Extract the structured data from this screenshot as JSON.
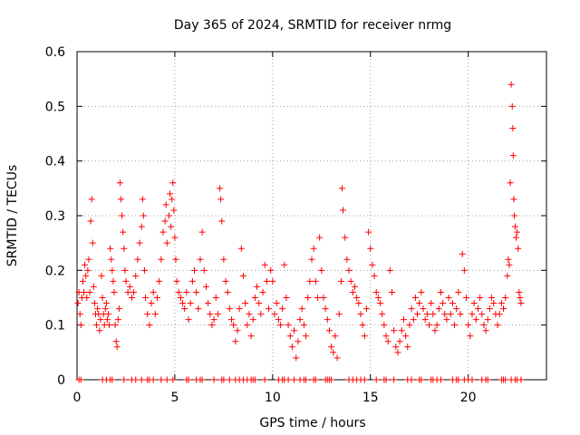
{
  "chart_data": {
    "type": "scatter",
    "title": "Day 365 of 2024, SRMTID for receiver nrmg",
    "xlabel": "GPS time / hours",
    "ylabel": "SRMTID / TECUs",
    "xlim": [
      0,
      24
    ],
    "ylim": [
      0,
      0.6
    ],
    "x_ticks": [
      0,
      5,
      10,
      15,
      20
    ],
    "y_ticks": [
      0,
      0.1,
      0.2,
      0.3,
      0.4,
      0.5,
      0.6
    ],
    "x_tick_labels": [
      "0",
      "5",
      "10",
      "15",
      "20"
    ],
    "y_tick_labels": [
      "0",
      "0.1",
      "0.2",
      "0.3",
      "0.4",
      "0.5",
      "0.6"
    ],
    "grid": true,
    "marker": "+",
    "series_color": "#ff0000",
    "series": [
      {
        "name": "SRMTID",
        "points": [
          [
            0.05,
            0.14
          ],
          [
            0.1,
            0.16
          ],
          [
            0.15,
            0.12
          ],
          [
            0.2,
            0.1
          ],
          [
            0.25,
            0.15
          ],
          [
            0.3,
            0.18
          ],
          [
            0.35,
            0.16
          ],
          [
            0.4,
            0.21
          ],
          [
            0.45,
            0.19
          ],
          [
            0.5,
            0.15
          ],
          [
            0.55,
            0.2
          ],
          [
            0.6,
            0.22
          ],
          [
            0.65,
            0.16
          ],
          [
            0.7,
            0.29
          ],
          [
            0.75,
            0.33
          ],
          [
            0.8,
            0.25
          ],
          [
            0.85,
            0.17
          ],
          [
            0.9,
            0.14
          ],
          [
            0.95,
            0.12
          ],
          [
            1.0,
            0.1
          ],
          [
            1.05,
            0.13
          ],
          [
            1.1,
            0.12
          ],
          [
            1.15,
            0.09
          ],
          [
            1.2,
            0.11
          ],
          [
            1.25,
            0.19
          ],
          [
            1.3,
            0.15
          ],
          [
            1.35,
            0.12
          ],
          [
            1.4,
            0.1
          ],
          [
            1.45,
            0.13
          ],
          [
            1.5,
            0.14
          ],
          [
            1.55,
            0.11
          ],
          [
            1.6,
            0.12
          ],
          [
            1.65,
            0.1
          ],
          [
            1.7,
            0.24
          ],
          [
            1.75,
            0.22
          ],
          [
            1.8,
            0.2
          ],
          [
            1.85,
            0.18
          ],
          [
            1.9,
            0.16
          ],
          [
            1.95,
            0.1
          ],
          [
            2.0,
            0.07
          ],
          [
            2.05,
            0.06
          ],
          [
            2.1,
            0.11
          ],
          [
            2.15,
            0.13
          ],
          [
            2.2,
            0.36
          ],
          [
            2.25,
            0.33
          ],
          [
            2.3,
            0.3
          ],
          [
            2.35,
            0.27
          ],
          [
            2.4,
            0.24
          ],
          [
            2.45,
            0.2
          ],
          [
            2.5,
            0.18
          ],
          [
            2.6,
            0.16
          ],
          [
            2.7,
            0.17
          ],
          [
            2.8,
            0.15
          ],
          [
            2.9,
            0.16
          ],
          [
            3.0,
            0.19
          ],
          [
            3.1,
            0.22
          ],
          [
            3.2,
            0.25
          ],
          [
            3.3,
            0.28
          ],
          [
            3.35,
            0.33
          ],
          [
            3.4,
            0.3
          ],
          [
            3.45,
            0.2
          ],
          [
            3.5,
            0.15
          ],
          [
            3.6,
            0.12
          ],
          [
            3.7,
            0.1
          ],
          [
            3.8,
            0.14
          ],
          [
            3.9,
            0.16
          ],
          [
            4.0,
            0.12
          ],
          [
            4.1,
            0.15
          ],
          [
            4.2,
            0.18
          ],
          [
            4.3,
            0.22
          ],
          [
            4.4,
            0.27
          ],
          [
            4.5,
            0.29
          ],
          [
            4.55,
            0.32
          ],
          [
            4.6,
            0.25
          ],
          [
            4.7,
            0.3
          ],
          [
            4.75,
            0.34
          ],
          [
            4.8,
            0.28
          ],
          [
            4.85,
            0.33
          ],
          [
            4.9,
            0.36
          ],
          [
            4.95,
            0.31
          ],
          [
            5.0,
            0.26
          ],
          [
            5.05,
            0.22
          ],
          [
            5.1,
            0.18
          ],
          [
            5.2,
            0.16
          ],
          [
            5.3,
            0.15
          ],
          [
            5.4,
            0.14
          ],
          [
            5.5,
            0.13
          ],
          [
            5.6,
            0.16
          ],
          [
            5.7,
            0.11
          ],
          [
            5.8,
            0.14
          ],
          [
            5.9,
            0.18
          ],
          [
            6.0,
            0.2
          ],
          [
            6.1,
            0.16
          ],
          [
            6.2,
            0.13
          ],
          [
            6.3,
            0.22
          ],
          [
            6.4,
            0.27
          ],
          [
            6.5,
            0.2
          ],
          [
            6.6,
            0.17
          ],
          [
            6.7,
            0.14
          ],
          [
            6.8,
            0.12
          ],
          [
            6.9,
            0.1
          ],
          [
            7.0,
            0.11
          ],
          [
            7.1,
            0.15
          ],
          [
            7.2,
            0.12
          ],
          [
            7.3,
            0.35
          ],
          [
            7.35,
            0.33
          ],
          [
            7.4,
            0.29
          ],
          [
            7.5,
            0.22
          ],
          [
            7.6,
            0.18
          ],
          [
            7.7,
            0.16
          ],
          [
            7.8,
            0.13
          ],
          [
            7.9,
            0.11
          ],
          [
            8.0,
            0.1
          ],
          [
            8.1,
            0.07
          ],
          [
            8.2,
            0.09
          ],
          [
            8.3,
            0.13
          ],
          [
            8.4,
            0.24
          ],
          [
            8.5,
            0.19
          ],
          [
            8.6,
            0.14
          ],
          [
            8.7,
            0.1
          ],
          [
            8.8,
            0.12
          ],
          [
            8.9,
            0.08
          ],
          [
            9.0,
            0.11
          ],
          [
            9.1,
            0.15
          ],
          [
            9.2,
            0.17
          ],
          [
            9.3,
            0.14
          ],
          [
            9.4,
            0.12
          ],
          [
            9.5,
            0.16
          ],
          [
            9.6,
            0.21
          ],
          [
            9.7,
            0.18
          ],
          [
            9.8,
            0.13
          ],
          [
            9.9,
            0.2
          ],
          [
            10.0,
            0.18
          ],
          [
            10.1,
            0.12
          ],
          [
            10.2,
            0.14
          ],
          [
            10.3,
            0.11
          ],
          [
            10.4,
            0.1
          ],
          [
            10.5,
            0.13
          ],
          [
            10.6,
            0.21
          ],
          [
            10.7,
            0.15
          ],
          [
            10.8,
            0.1
          ],
          [
            10.9,
            0.08
          ],
          [
            11.0,
            0.06
          ],
          [
            11.1,
            0.09
          ],
          [
            11.2,
            0.04
          ],
          [
            11.3,
            0.07
          ],
          [
            11.4,
            0.11
          ],
          [
            11.5,
            0.13
          ],
          [
            11.6,
            0.1
          ],
          [
            11.7,
            0.08
          ],
          [
            11.8,
            0.15
          ],
          [
            11.9,
            0.18
          ],
          [
            12.0,
            0.22
          ],
          [
            12.1,
            0.24
          ],
          [
            12.2,
            0.18
          ],
          [
            12.3,
            0.15
          ],
          [
            12.4,
            0.26
          ],
          [
            12.5,
            0.2
          ],
          [
            12.6,
            0.15
          ],
          [
            12.7,
            0.13
          ],
          [
            12.8,
            0.11
          ],
          [
            12.9,
            0.09
          ],
          [
            13.0,
            0.06
          ],
          [
            13.1,
            0.05
          ],
          [
            13.2,
            0.08
          ],
          [
            13.3,
            0.04
          ],
          [
            13.4,
            0.12
          ],
          [
            13.5,
            0.18
          ],
          [
            13.55,
            0.35
          ],
          [
            13.6,
            0.31
          ],
          [
            13.7,
            0.26
          ],
          [
            13.8,
            0.22
          ],
          [
            13.9,
            0.2
          ],
          [
            14.0,
            0.18
          ],
          [
            14.1,
            0.16
          ],
          [
            14.2,
            0.17
          ],
          [
            14.3,
            0.15
          ],
          [
            14.4,
            0.14
          ],
          [
            14.5,
            0.12
          ],
          [
            14.6,
            0.1
          ],
          [
            14.7,
            0.08
          ],
          [
            14.8,
            0.13
          ],
          [
            14.9,
            0.27
          ],
          [
            15.0,
            0.24
          ],
          [
            15.1,
            0.21
          ],
          [
            15.2,
            0.19
          ],
          [
            15.3,
            0.16
          ],
          [
            15.4,
            0.15
          ],
          [
            15.5,
            0.14
          ],
          [
            15.6,
            0.12
          ],
          [
            15.7,
            0.1
          ],
          [
            15.8,
            0.08
          ],
          [
            15.9,
            0.07
          ],
          [
            16.0,
            0.2
          ],
          [
            16.1,
            0.16
          ],
          [
            16.2,
            0.09
          ],
          [
            16.3,
            0.06
          ],
          [
            16.4,
            0.05
          ],
          [
            16.5,
            0.07
          ],
          [
            16.6,
            0.09
          ],
          [
            16.7,
            0.11
          ],
          [
            16.8,
            0.08
          ],
          [
            16.9,
            0.06
          ],
          [
            17.0,
            0.1
          ],
          [
            17.1,
            0.13
          ],
          [
            17.2,
            0.11
          ],
          [
            17.3,
            0.15
          ],
          [
            17.4,
            0.12
          ],
          [
            17.5,
            0.14
          ],
          [
            17.6,
            0.16
          ],
          [
            17.7,
            0.13
          ],
          [
            17.8,
            0.11
          ],
          [
            17.9,
            0.12
          ],
          [
            18.0,
            0.1
          ],
          [
            18.1,
            0.14
          ],
          [
            18.2,
            0.12
          ],
          [
            18.3,
            0.09
          ],
          [
            18.4,
            0.1
          ],
          [
            18.5,
            0.13
          ],
          [
            18.6,
            0.16
          ],
          [
            18.7,
            0.14
          ],
          [
            18.8,
            0.12
          ],
          [
            18.9,
            0.11
          ],
          [
            19.0,
            0.15
          ],
          [
            19.1,
            0.12
          ],
          [
            19.2,
            0.14
          ],
          [
            19.3,
            0.1
          ],
          [
            19.4,
            0.13
          ],
          [
            19.5,
            0.16
          ],
          [
            19.6,
            0.12
          ],
          [
            19.7,
            0.23
          ],
          [
            19.8,
            0.2
          ],
          [
            19.9,
            0.15
          ],
          [
            20.0,
            0.1
          ],
          [
            20.1,
            0.08
          ],
          [
            20.2,
            0.12
          ],
          [
            20.3,
            0.14
          ],
          [
            20.4,
            0.11
          ],
          [
            20.5,
            0.13
          ],
          [
            20.6,
            0.15
          ],
          [
            20.7,
            0.12
          ],
          [
            20.8,
            0.1
          ],
          [
            20.9,
            0.09
          ],
          [
            21.0,
            0.11
          ],
          [
            21.1,
            0.13
          ],
          [
            21.2,
            0.15
          ],
          [
            21.3,
            0.14
          ],
          [
            21.4,
            0.12
          ],
          [
            21.5,
            0.1
          ],
          [
            21.6,
            0.12
          ],
          [
            21.7,
            0.14
          ],
          [
            21.8,
            0.13
          ],
          [
            21.9,
            0.15
          ],
          [
            22.0,
            0.19
          ],
          [
            22.05,
            0.22
          ],
          [
            22.1,
            0.21
          ],
          [
            22.15,
            0.36
          ],
          [
            22.2,
            0.54
          ],
          [
            22.25,
            0.5
          ],
          [
            22.28,
            0.46
          ],
          [
            22.3,
            0.41
          ],
          [
            22.33,
            0.33
          ],
          [
            22.36,
            0.3
          ],
          [
            22.4,
            0.28
          ],
          [
            22.45,
            0.26
          ],
          [
            22.5,
            0.27
          ],
          [
            22.55,
            0.24
          ],
          [
            22.6,
            0.16
          ],
          [
            22.65,
            0.15
          ],
          [
            22.7,
            0.14
          ]
        ]
      }
    ],
    "zero_points_x": [
      0.1,
      0.2,
      1.3,
      1.5,
      1.7,
      1.8,
      2.4,
      2.8,
      3.0,
      3.3,
      3.6,
      3.7,
      3.9,
      4.3,
      4.6,
      4.9,
      5.6,
      5.7,
      6.1,
      6.3,
      6.4,
      7.0,
      7.4,
      7.5,
      7.8,
      8.1,
      8.3,
      8.5,
      8.7,
      8.9,
      9.0,
      9.1,
      9.6,
      10.3,
      10.5,
      10.6,
      10.8,
      11.1,
      11.4,
      11.6,
      11.7,
      12.1,
      12.2,
      12.7,
      12.8,
      12.9,
      13.0,
      13.9,
      14.1,
      14.3,
      14.5,
      14.7,
      15.3,
      15.7,
      15.8,
      16.2,
      16.9,
      17.1,
      17.5,
      17.6,
      18.1,
      18.2,
      18.4,
      18.6,
      19.2,
      19.4,
      19.5,
      19.8,
      20.0,
      20.2,
      20.7,
      20.9,
      21.0,
      21.7,
      21.8,
      21.9,
      22.2,
      22.4,
      22.5,
      22.7
    ]
  }
}
